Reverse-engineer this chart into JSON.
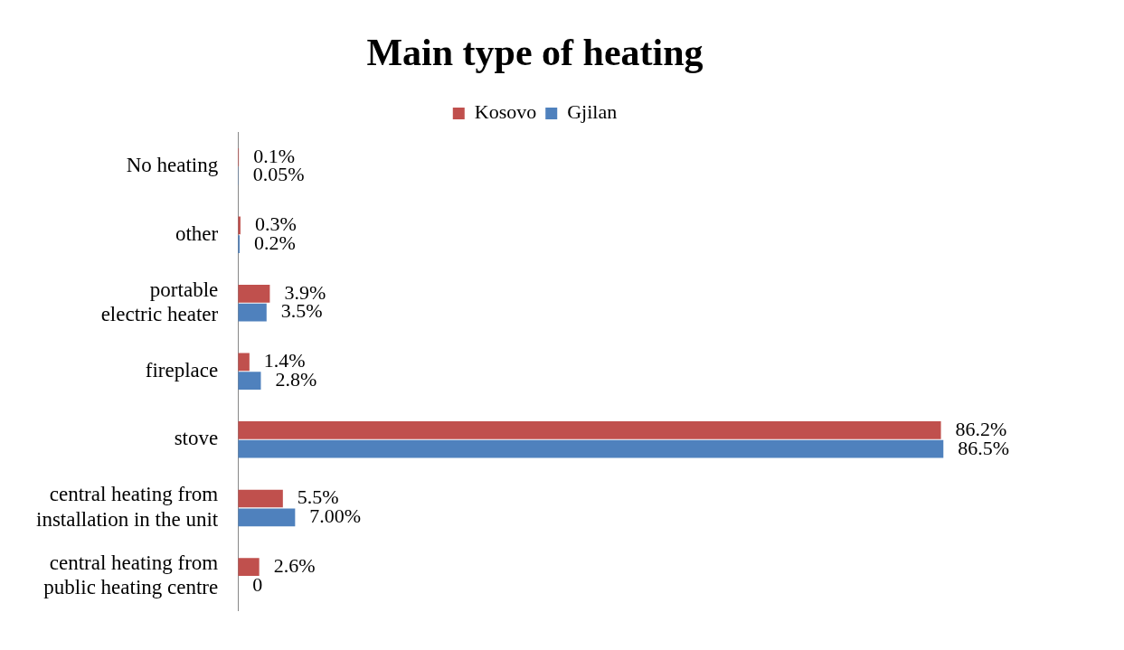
{
  "chart_data": {
    "type": "bar",
    "orientation": "horizontal",
    "title": "Main type of heating",
    "categories": [
      "No heating",
      "other",
      "portable electric heater",
      "fireplace",
      "stove",
      "central heating from installation in the unit",
      "central heating from public heating centre"
    ],
    "series": [
      {
        "name": "Kosovo",
        "color": "#c0504d",
        "values": [
          0.1,
          0.3,
          3.9,
          1.4,
          86.2,
          5.5,
          2.6
        ],
        "value_labels": [
          "0.1%",
          "0.3%",
          "3.9%",
          "1.4%",
          "86.2%",
          "5.5%",
          "2.6%"
        ]
      },
      {
        "name": "Gjilan",
        "color": "#4f81bd",
        "values": [
          0.05,
          0.2,
          3.5,
          2.8,
          86.5,
          7.0,
          0
        ],
        "value_labels": [
          "0.05%",
          "0.2%",
          "3.5%",
          "2.8%",
          "86.5%",
          "7.00%",
          "0"
        ]
      }
    ],
    "tick_labels": "y",
    "grid": false,
    "legend": "top"
  }
}
